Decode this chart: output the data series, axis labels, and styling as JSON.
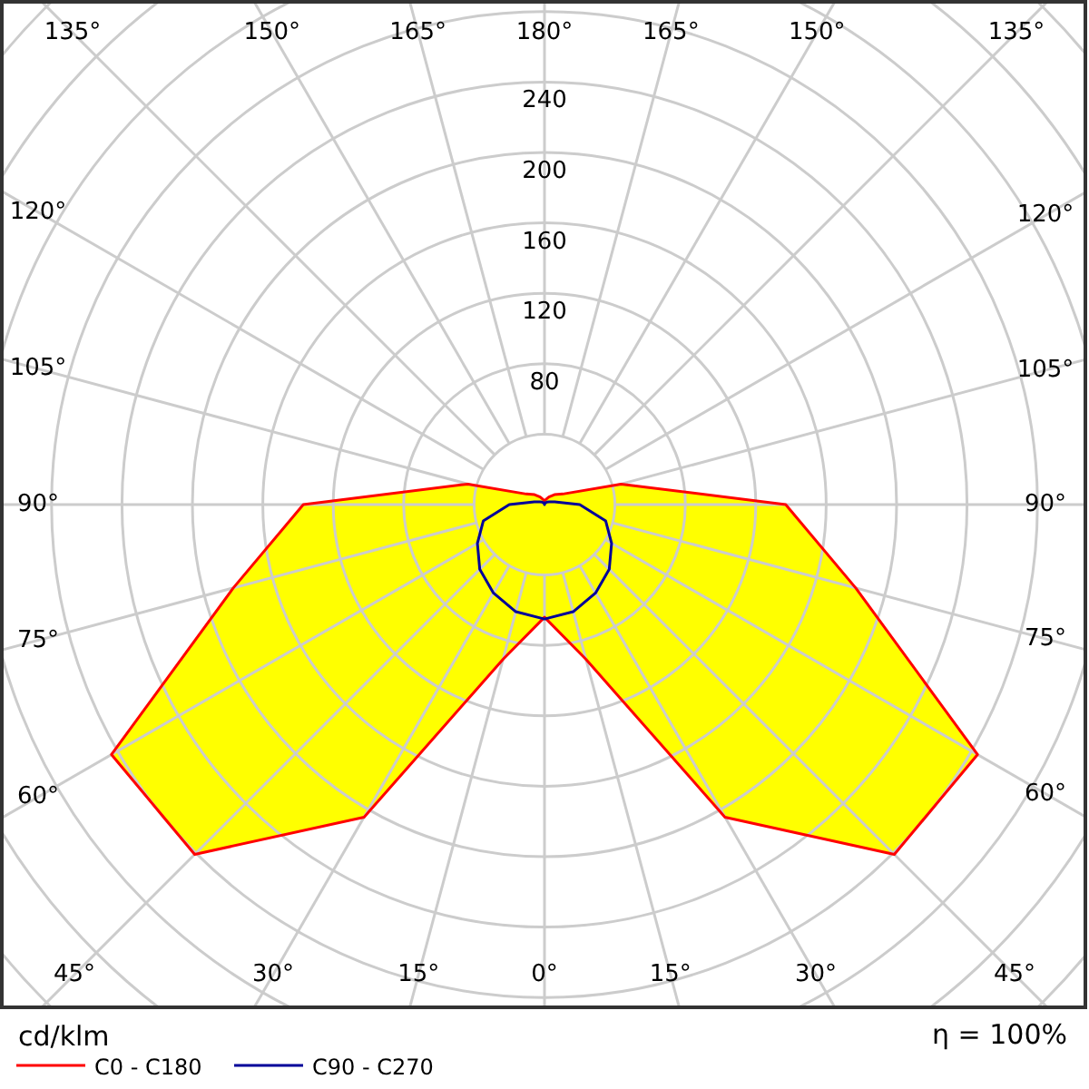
{
  "chart_data": {
    "type": "radar",
    "categories": [
      "180°",
      "165°",
      "150°",
      "135°",
      "120°",
      "105°",
      "90°",
      "75°",
      "60°",
      "45°",
      "30°",
      "15°",
      "0°",
      "15°",
      "30°",
      "45°",
      "60°",
      "75°",
      "90°",
      "105°",
      "120°",
      "135°",
      "150°",
      "165°"
    ],
    "series": [
      {
        "name": "C0 - C180",
        "color": "#ff0000",
        "values": [
          2,
          3,
          5,
          8,
          12,
          45,
          137,
          183,
          284,
          281,
          205,
          91,
          64,
          91,
          205,
          281,
          284,
          183,
          137,
          45,
          12,
          8,
          5,
          3
        ]
      },
      {
        "name": "C90 - C270",
        "color": "#000099",
        "values": [
          0,
          1,
          1,
          2,
          3,
          6,
          20,
          36,
          44,
          52,
          58,
          63,
          65,
          63,
          58,
          52,
          44,
          36,
          20,
          6,
          3,
          2,
          1,
          1
        ]
      }
    ],
    "ylim": [
      0,
      400
    ],
    "yticks": [
      80,
      120,
      160,
      200,
      240
    ],
    "ylabel": "cd/klm",
    "annotations": [
      "η = 100%"
    ],
    "grid": true,
    "legend": "bottom left"
  }
}
